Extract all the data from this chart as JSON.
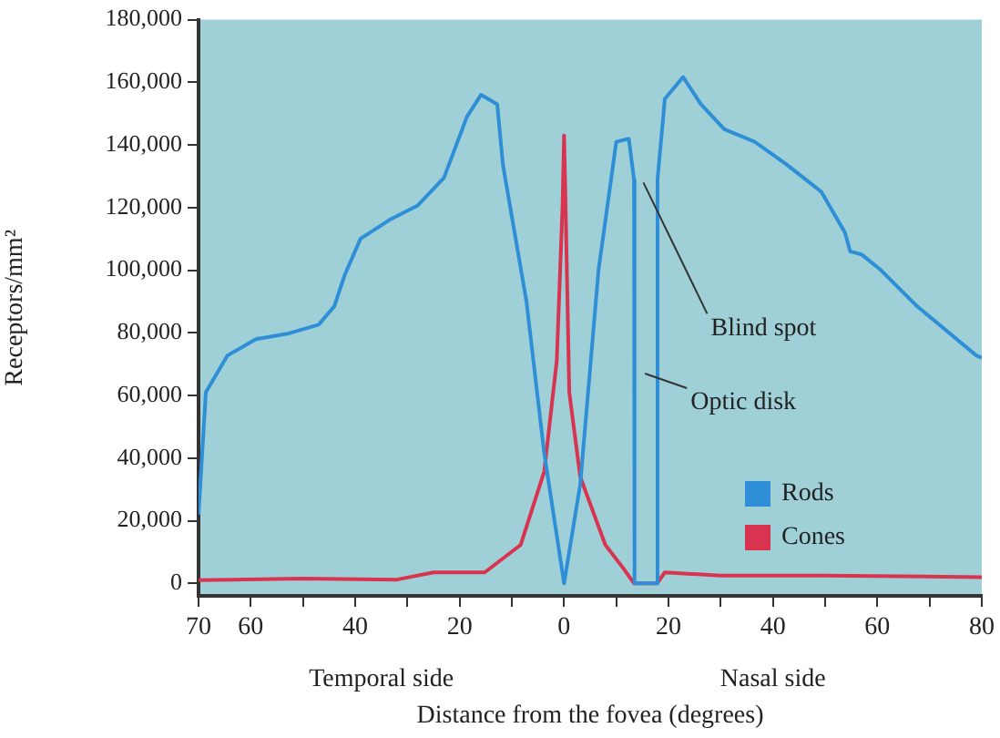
{
  "chart_data": {
    "type": "line",
    "xlabel": "Distance from the fovea (degrees)",
    "ylabel": "Receptors/mm²",
    "xlim": [
      -70,
      80
    ],
    "ylim": [
      -4000,
      180000
    ],
    "xticks": [
      {
        "value": -70,
        "label": "70"
      },
      {
        "value": -60,
        "label": "60"
      },
      {
        "value": -50,
        "label": null
      },
      {
        "value": -40,
        "label": "40"
      },
      {
        "value": -30,
        "label": null
      },
      {
        "value": -20,
        "label": "20"
      },
      {
        "value": -10,
        "label": null
      },
      {
        "value": 0,
        "label": "0"
      },
      {
        "value": 10,
        "label": null
      },
      {
        "value": 20,
        "label": "20"
      },
      {
        "value": 30,
        "label": null
      },
      {
        "value": 40,
        "label": "40"
      },
      {
        "value": 50,
        "label": null
      },
      {
        "value": 60,
        "label": "60"
      },
      {
        "value": 70,
        "label": null
      },
      {
        "value": 80,
        "label": "80"
      }
    ],
    "yticks": [
      {
        "value": 0,
        "label": "0"
      },
      {
        "value": 20000,
        "label": "20,000"
      },
      {
        "value": 40000,
        "label": "40,000"
      },
      {
        "value": 60000,
        "label": "60,000"
      },
      {
        "value": 80000,
        "label": "80,000"
      },
      {
        "value": 100000,
        "label": "100,000"
      },
      {
        "value": 120000,
        "label": "120,000"
      },
      {
        "value": 140000,
        "label": "140,000"
      },
      {
        "value": 160000,
        "label": "160,000"
      },
      {
        "value": 180000,
        "label": "180,000"
      }
    ],
    "legend": "bottom right",
    "marker": "none",
    "line_style": "solid",
    "series": [
      {
        "name": "Rods",
        "color": "#2f8fd6",
        "x": [
          -70,
          -68.6,
          -64.5,
          -59,
          -53,
          -47,
          -44,
          -42,
          -39,
          -33.5,
          -28,
          -23,
          -18.6,
          -15.9,
          -12.8,
          -11.7,
          -7.2,
          -3.8,
          0,
          3.1,
          6.6,
          10,
          12.4,
          13.4,
          13.5,
          17.8,
          17.9,
          19.3,
          22.8,
          26.2,
          30.7,
          36.5,
          42.4,
          49.3,
          53.8,
          54.8,
          57,
          60.7,
          67.6,
          79,
          80
        ],
        "values": [
          22000,
          61000,
          72700,
          78000,
          79700,
          82600,
          88500,
          98500,
          110000,
          116000,
          120700,
          129500,
          149000,
          156000,
          153000,
          133600,
          90000,
          41600,
          0,
          31600,
          100000,
          141000,
          142000,
          129000,
          0,
          0,
          129000,
          154700,
          161700,
          153000,
          145000,
          141000,
          134000,
          125000,
          112000,
          106000,
          105000,
          100000,
          88500,
          72700,
          72000
        ]
      },
      {
        "name": "Cones",
        "color": "#d8344f",
        "x": [
          -70,
          -50,
          -32,
          -25,
          -18,
          -15.2,
          -8.3,
          -3.8,
          -1.4,
          -0.3,
          0,
          0.3,
          1,
          3.1,
          7.9,
          11.4,
          13.4,
          17.8,
          19.3,
          30,
          50,
          80
        ],
        "values": [
          1000,
          1500,
          1200,
          3500,
          3500,
          3500,
          12300,
          35700,
          71000,
          120000,
          143000,
          120000,
          61000,
          34000,
          12300,
          4700,
          0,
          0,
          3500,
          2500,
          2500,
          2000
        ]
      }
    ],
    "annotations": [
      {
        "text": "Blind spot",
        "x": 15.2,
        "y": 128000
      },
      {
        "text": "Optic disk",
        "x": 15.5,
        "y": 67000
      },
      "Temporal side",
      "Nasal side"
    ]
  }
}
